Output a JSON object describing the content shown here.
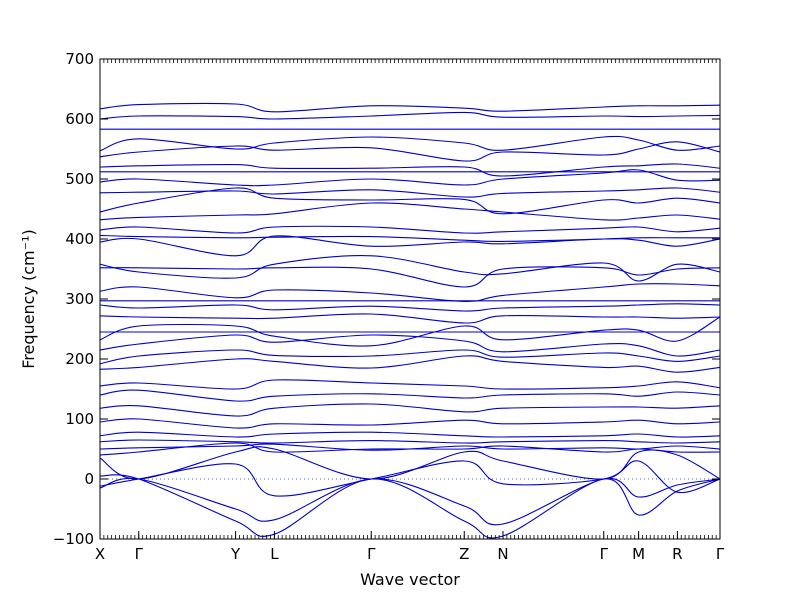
{
  "chart_data": {
    "type": "line",
    "xlabel": "Wave vector",
    "ylabel": "Frequency (cm⁻¹)",
    "ylim": [
      -100,
      700
    ],
    "yticks": [
      -100,
      0,
      100,
      200,
      300,
      400,
      500,
      600,
      700
    ],
    "x_points": [
      {
        "label": "X",
        "x": 0.0
      },
      {
        "label": "Γ",
        "x": 1.0
      },
      {
        "label": "Y",
        "x": 3.5
      },
      {
        "label": "L",
        "x": 4.5
      },
      {
        "label": "Γ",
        "x": 7.0
      },
      {
        "label": "Z",
        "x": 9.4
      },
      {
        "label": "N",
        "x": 10.4
      },
      {
        "label": "Γ",
        "x": 13.0
      },
      {
        "label": "M",
        "x": 13.9
      },
      {
        "label": "R",
        "x": 14.9
      },
      {
        "label": "Γ",
        "x": 16.0
      }
    ],
    "xlim": [
      0,
      16
    ],
    "zero_line": true,
    "line_color": "#0000cc",
    "zero_line_color": "#4466cc",
    "series": [
      {
        "x": [
          0,
          1,
          3.5,
          4.5,
          7,
          9.4,
          10.4,
          13,
          13.9,
          14.9,
          16
        ],
        "y": [
          617,
          624,
          625,
          612,
          622,
          618,
          613,
          620,
          622,
          622,
          623
        ]
      },
      {
        "x": [
          0,
          1,
          3.5,
          4.5,
          7,
          9.4,
          10.4,
          13,
          13.9,
          14.9,
          16
        ],
        "y": [
          600,
          605,
          604,
          600,
          605,
          611,
          603,
          605,
          604,
          605,
          606
        ]
      },
      {
        "x": [
          0,
          16
        ],
        "y": [
          583,
          583
        ]
      },
      {
        "x": [
          0,
          1,
          3.5,
          4.5,
          7,
          9.4,
          10.4,
          13,
          13.9,
          14.9,
          16
        ],
        "y": [
          547,
          567,
          550,
          560,
          570,
          560,
          548,
          570,
          565,
          548,
          555
        ]
      },
      {
        "x": [
          0,
          1,
          3.5,
          4.5,
          7,
          9.4,
          10.4,
          13,
          13.9,
          14.9,
          16
        ],
        "y": [
          537,
          545,
          555,
          548,
          552,
          530,
          545,
          540,
          550,
          562,
          545
        ]
      },
      {
        "x": [
          0,
          1,
          3.5,
          4.5,
          7,
          9.4,
          10.4,
          13,
          13.9,
          14.9,
          16
        ],
        "y": [
          520,
          522,
          524,
          518,
          518,
          520,
          505,
          520,
          522,
          525,
          518
        ]
      },
      {
        "x": [
          0,
          16
        ],
        "y": [
          512,
          512
        ]
      },
      {
        "x": [
          0,
          1,
          3.5,
          4.5,
          7,
          9.4,
          10.4,
          13,
          13.9,
          14.9,
          16
        ],
        "y": [
          495,
          500,
          490,
          490,
          500,
          490,
          500,
          510,
          515,
          498,
          498
        ]
      },
      {
        "x": [
          0,
          1,
          3.5,
          4.5,
          7,
          9.4,
          10.4,
          13,
          13.9,
          14.9,
          16
        ],
        "y": [
          477,
          478,
          480,
          475,
          482,
          470,
          476,
          480,
          482,
          485,
          478
        ]
      },
      {
        "x": [
          0,
          1,
          3.5,
          4.5,
          7,
          9.4,
          10.4,
          13,
          13.9,
          14.9,
          16
        ],
        "y": [
          445,
          460,
          485,
          468,
          465,
          466,
          442,
          465,
          460,
          468,
          460
        ]
      },
      {
        "x": [
          0,
          1,
          3.5,
          4.5,
          7,
          9.4,
          10.4,
          13,
          13.9,
          14.9,
          16
        ],
        "y": [
          432,
          436,
          440,
          442,
          460,
          450,
          445,
          432,
          435,
          440,
          433
        ]
      },
      {
        "x": [
          0,
          1,
          3.5,
          4.5,
          7,
          9.4,
          10.4,
          13,
          13.9,
          14.9,
          16
        ],
        "y": [
          415,
          420,
          410,
          420,
          420,
          410,
          412,
          418,
          420,
          412,
          418
        ]
      },
      {
        "x": [
          0,
          1,
          3.5,
          4.5,
          7,
          9.4,
          10.4,
          13,
          13.9,
          14.9,
          16
        ],
        "y": [
          406,
          404,
          402,
          403,
          404,
          398,
          396,
          400,
          402,
          402,
          402
        ]
      },
      {
        "x": [
          0,
          1,
          3.5,
          4.5,
          7,
          9.4,
          10.4,
          13,
          13.9,
          14.9,
          16
        ],
        "y": [
          395,
          400,
          372,
          405,
          388,
          395,
          392,
          400,
          398,
          388,
          400
        ]
      },
      {
        "x": [
          0,
          1,
          3.5,
          4.5,
          7,
          9.4,
          10.4,
          13,
          13.9,
          14.9,
          16
        ],
        "y": [
          358,
          345,
          335,
          358,
          372,
          345,
          342,
          360,
          330,
          358,
          345
        ]
      },
      {
        "x": [
          0,
          1,
          3.5,
          4.5,
          7,
          9.4,
          10.4,
          13,
          13.9,
          14.9,
          16
        ],
        "y": [
          352,
          352,
          350,
          352,
          350,
          320,
          350,
          352,
          340,
          350,
          352
        ]
      },
      {
        "x": [
          0,
          1,
          3.5,
          4.5,
          7,
          9.4,
          10.4,
          13,
          13.9,
          14.9,
          16
        ],
        "y": [
          313,
          320,
          302,
          315,
          310,
          296,
          306,
          320,
          325,
          325,
          322
        ]
      },
      {
        "x": [
          0,
          16
        ],
        "y": [
          297,
          297
        ]
      },
      {
        "x": [
          0,
          1,
          3.5,
          4.5,
          7,
          9.4,
          10.4,
          13,
          13.9,
          14.9,
          16
        ],
        "y": [
          290,
          285,
          290,
          282,
          288,
          280,
          285,
          288,
          290,
          292,
          290
        ]
      },
      {
        "x": [
          0,
          1,
          3.5,
          4.5,
          7,
          9.4,
          10.4,
          13,
          13.9,
          14.9,
          16
        ],
        "y": [
          272,
          270,
          268,
          268,
          275,
          260,
          272,
          270,
          270,
          268,
          270
        ]
      },
      {
        "x": [
          0,
          1,
          3.5,
          4.5,
          7,
          9.4,
          10.4,
          13,
          13.9,
          14.9,
          16
        ],
        "y": [
          232,
          255,
          255,
          238,
          222,
          255,
          232,
          248,
          248,
          230,
          270
        ]
      },
      {
        "x": [
          0,
          16
        ],
        "y": [
          245,
          245
        ]
      },
      {
        "x": [
          0,
          1,
          3.5,
          4.5,
          7,
          9.4,
          10.4,
          13,
          13.9,
          14.9,
          16
        ],
        "y": [
          215,
          225,
          240,
          228,
          240,
          230,
          212,
          225,
          222,
          205,
          215
        ]
      },
      {
        "x": [
          0,
          1,
          3.5,
          4.5,
          7,
          9.4,
          10.4,
          13,
          13.9,
          14.9,
          16
        ],
        "y": [
          192,
          205,
          215,
          206,
          205,
          215,
          203,
          210,
          205,
          196,
          205
        ]
      },
      {
        "x": [
          0,
          1,
          3.5,
          4.5,
          7,
          9.4,
          10.4,
          13,
          13.9,
          14.9,
          16
        ],
        "y": [
          183,
          186,
          200,
          196,
          185,
          205,
          196,
          186,
          188,
          178,
          186
        ]
      },
      {
        "x": [
          0,
          1,
          3.5,
          4.5,
          7,
          9.4,
          10.4,
          13,
          13.9,
          14.9,
          16
        ],
        "y": [
          155,
          160,
          150,
          165,
          160,
          155,
          150,
          152,
          155,
          162,
          152
        ]
      },
      {
        "x": [
          0,
          1,
          3.5,
          4.5,
          7,
          9.4,
          10.4,
          13,
          13.9,
          14.9,
          16
        ],
        "y": [
          140,
          148,
          130,
          138,
          142,
          135,
          140,
          142,
          138,
          145,
          140
        ]
      },
      {
        "x": [
          0,
          1,
          3.5,
          4.5,
          7,
          9.4,
          10.4,
          13,
          13.9,
          14.9,
          16
        ],
        "y": [
          118,
          122,
          105,
          118,
          125,
          112,
          118,
          120,
          120,
          118,
          122
        ]
      },
      {
        "x": [
          0,
          1,
          3.5,
          4.5,
          7,
          9.4,
          10.4,
          13,
          13.9,
          14.9,
          16
        ],
        "y": [
          95,
          100,
          85,
          92,
          90,
          98,
          92,
          95,
          98,
          92,
          95
        ]
      },
      {
        "x": [
          0,
          1,
          3.5,
          4.5,
          7,
          9.4,
          10.4,
          13,
          13.9,
          14.9,
          16
        ],
        "y": [
          72,
          78,
          70,
          75,
          78,
          72,
          70,
          72,
          75,
          70,
          72
        ]
      },
      {
        "x": [
          0,
          1,
          3.5,
          4.5,
          7,
          9.4,
          10.4,
          13,
          13.9,
          14.9,
          16
        ],
        "y": [
          62,
          65,
          62,
          60,
          64,
          60,
          62,
          64,
          62,
          60,
          62
        ]
      },
      {
        "x": [
          0,
          1,
          3.5,
          4.5,
          7,
          9.4,
          10.4,
          13,
          13.9,
          14.9,
          16
        ],
        "y": [
          50,
          52,
          55,
          58,
          48,
          55,
          50,
          52,
          50,
          55,
          50
        ]
      },
      {
        "x": [
          0,
          1,
          3.5,
          4.5,
          7,
          9.4,
          10.4,
          13,
          13.9,
          14.9,
          16
        ],
        "y": [
          40,
          45,
          60,
          45,
          50,
          50,
          55,
          45,
          50,
          45,
          45
        ]
      },
      {
        "x": [
          0,
          1,
          3.5,
          4.5,
          7,
          9.4,
          10.4,
          13,
          13.9,
          14.9,
          16
        ],
        "y": [
          35,
          0,
          45,
          50,
          0,
          45,
          30,
          0,
          45,
          40,
          0
        ]
      },
      {
        "x": [
          0,
          1,
          3.5,
          4.5,
          7,
          9.4,
          10.4,
          13,
          13.9,
          14.9,
          16
        ],
        "y": [
          -12,
          0,
          25,
          -28,
          0,
          30,
          -8,
          0,
          30,
          -22,
          0
        ]
      },
      {
        "x": [
          0,
          1,
          3.5,
          4.5,
          7,
          9.4,
          10.4,
          13,
          13.9,
          14.9,
          16
        ],
        "y": [
          -15,
          0,
          -50,
          -68,
          0,
          -45,
          -75,
          0,
          -30,
          -10,
          0
        ]
      },
      {
        "x": [
          0,
          1,
          3.5,
          4.5,
          7,
          9.4,
          10.4,
          13,
          13.9,
          14.9,
          16
        ],
        "y": [
          5,
          0,
          -70,
          -92,
          0,
          -70,
          -95,
          0,
          -60,
          -20,
          0
        ]
      }
    ],
    "grid": false
  }
}
